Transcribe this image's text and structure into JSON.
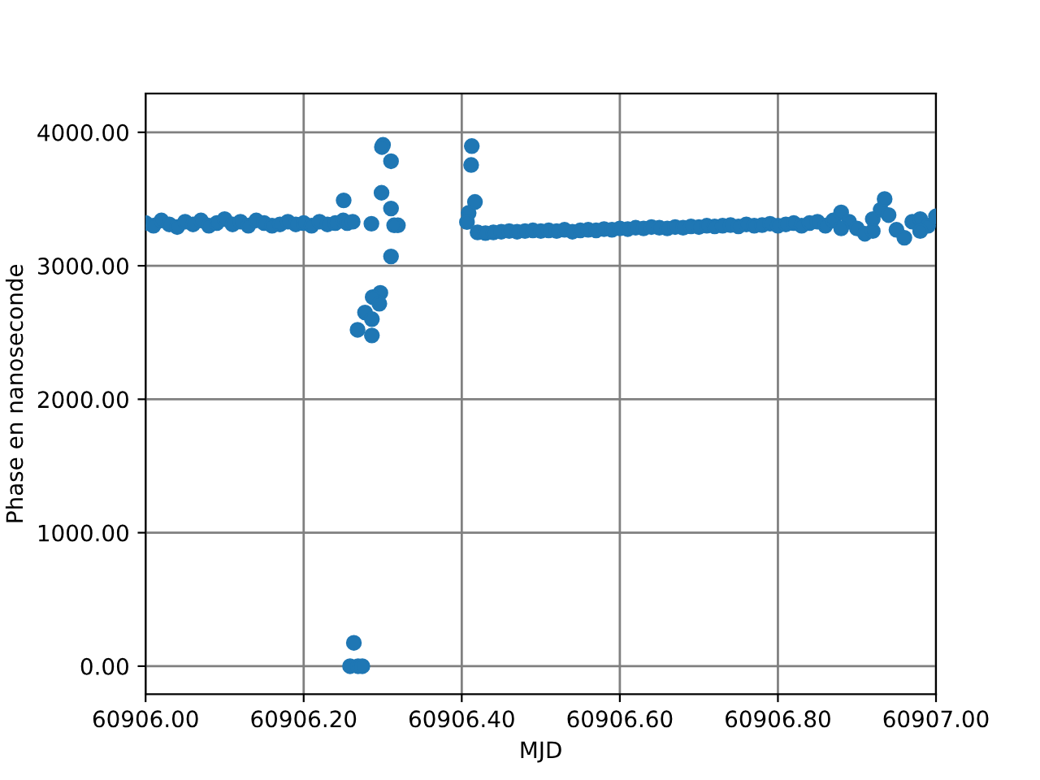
{
  "chart_data": {
    "type": "scatter",
    "xlabel": "MJD",
    "ylabel": "Phase en nanoseconde",
    "x": [
      60906.0,
      60906.01,
      60906.02,
      60906.03,
      60906.04,
      60906.05,
      60906.06,
      60906.07,
      60906.08,
      60906.09,
      60906.1,
      60906.11,
      60906.12,
      60906.13,
      60906.14,
      60906.15,
      60906.16,
      60906.17,
      60906.18,
      60906.19,
      60906.2,
      60906.21,
      60906.22,
      60906.23,
      60906.24,
      60906.25,
      60906.255,
      60906.262,
      60906.2506,
      60906.3004,
      60906.299,
      60906.3105,
      60906.2985,
      60906.3105,
      60906.3192,
      60906.3145,
      60906.2857,
      60906.3105,
      60906.297,
      60906.2873,
      60906.2957,
      60906.2776,
      60906.2863,
      60906.2682,
      60906.2863,
      60906.2635,
      60906.2587,
      60906.2688,
      60906.2742,
      60906.4127,
      60906.4119,
      60906.4167,
      60906.4087,
      60906.4066,
      60906.42,
      60906.43,
      60906.44,
      60906.45,
      60906.46,
      60906.47,
      60906.48,
      60906.49,
      60906.5,
      60906.51,
      60906.52,
      60906.53,
      60906.54,
      60906.55,
      60906.56,
      60906.57,
      60906.58,
      60906.59,
      60906.6,
      60906.61,
      60906.62,
      60906.63,
      60906.64,
      60906.65,
      60906.66,
      60906.67,
      60906.68,
      60906.69,
      60906.7,
      60906.71,
      60906.72,
      60906.73,
      60906.74,
      60906.75,
      60906.76,
      60906.77,
      60906.78,
      60906.79,
      60906.8,
      60906.81,
      60906.82,
      60906.83,
      60906.84,
      60906.85,
      60906.86,
      60906.87,
      60906.88,
      60906.89,
      60906.9,
      60906.91,
      60906.92,
      60906.93,
      60906.935,
      60906.94,
      60906.95,
      60906.96,
      60906.97,
      60906.98,
      60906.99,
      60907.0,
      60906.88,
      60906.92,
      60906.98
    ],
    "series": [
      {
        "color": "#1f77b4",
        "values": [
          3320,
          3300,
          3340,
          3310,
          3290,
          3330,
          3310,
          3340,
          3300,
          3320,
          3350,
          3310,
          3330,
          3300,
          3340,
          3320,
          3300,
          3310,
          3330,
          3310,
          3320,
          3300,
          3330,
          3310,
          3320,
          3340,
          3320,
          3330,
          3490,
          3906,
          3890,
          3783,
          3547,
          3429,
          3303,
          3303,
          3315,
          3070,
          2797,
          2765,
          2716,
          2650,
          2600,
          2520,
          2478,
          175,
          0,
          0,
          0,
          3897,
          3755,
          3478,
          3396,
          3327,
          3250,
          3245,
          3250,
          3255,
          3260,
          3255,
          3260,
          3265,
          3260,
          3265,
          3260,
          3270,
          3255,
          3265,
          3270,
          3265,
          3275,
          3270,
          3280,
          3275,
          3285,
          3280,
          3290,
          3285,
          3280,
          3290,
          3285,
          3295,
          3290,
          3300,
          3295,
          3300,
          3305,
          3295,
          3310,
          3300,
          3305,
          3315,
          3300,
          3310,
          3320,
          3300,
          3320,
          3330,
          3300,
          3340,
          3400,
          3330,
          3280,
          3240,
          3350,
          3420,
          3500,
          3380,
          3270,
          3210,
          3330,
          3350,
          3300,
          3370,
          3280,
          3260,
          3260
        ]
      }
    ],
    "xlim": [
      60906.0,
      60907.0
    ],
    "xticks": [
      {
        "value": 60906.0,
        "label": "60906.00"
      },
      {
        "value": 60906.2,
        "label": "60906.20"
      },
      {
        "value": 60906.4,
        "label": "60906.40"
      },
      {
        "value": 60906.6,
        "label": "60906.60"
      },
      {
        "value": 60906.8,
        "label": "60906.80"
      },
      {
        "value": 60907.0,
        "label": "60907.00"
      }
    ],
    "ylim": [
      -210,
      4290
    ],
    "yticks": [
      {
        "value": 0,
        "label": "0.00"
      },
      {
        "value": 1000,
        "label": "1000.00"
      },
      {
        "value": 2000,
        "label": "2000.00"
      },
      {
        "value": 3000,
        "label": "3000.00"
      },
      {
        "value": 4000,
        "label": "4000.00"
      }
    ],
    "grid": true,
    "marker": "circle",
    "legend": false
  }
}
